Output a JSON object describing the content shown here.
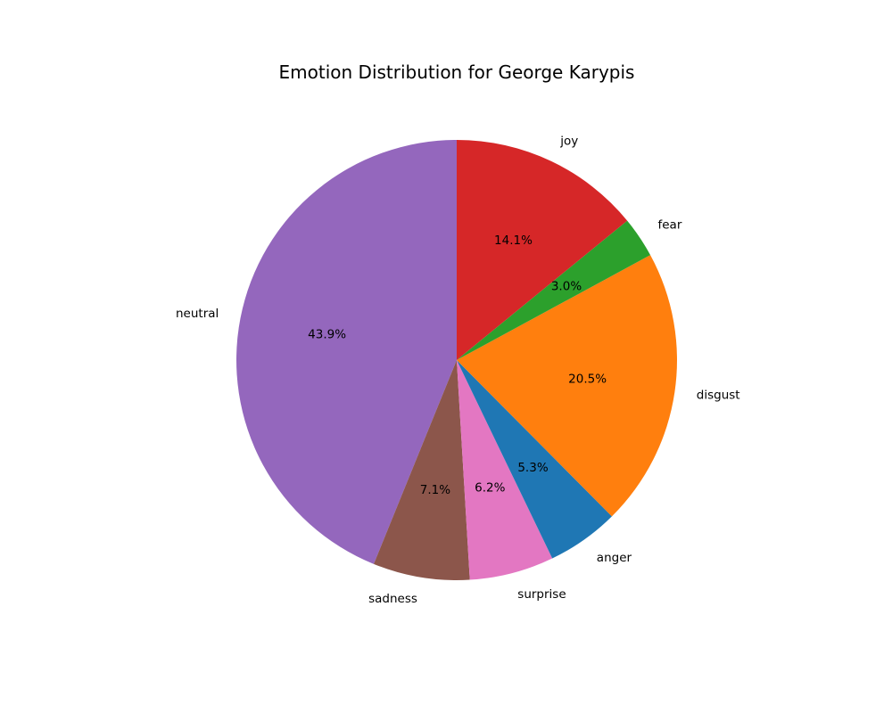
{
  "chart_data": {
    "type": "pie",
    "title": "Emotion Distribution for George Karypis",
    "start_angle_deg": 90,
    "direction": "counterclockwise",
    "slices": [
      {
        "name": "neutral",
        "value": 43.9,
        "label": "43.9%",
        "color": "#9467bd"
      },
      {
        "name": "sadness",
        "value": 7.1,
        "label": "7.1%",
        "color": "#8c564b"
      },
      {
        "name": "surprise",
        "value": 6.2,
        "label": "6.2%",
        "color": "#e377c2"
      },
      {
        "name": "anger",
        "value": 5.3,
        "label": "5.3%",
        "color": "#1f77b4"
      },
      {
        "name": "disgust",
        "value": 20.5,
        "label": "20.5%",
        "color": "#ff7f0e"
      },
      {
        "name": "fear",
        "value": 3.0,
        "label": "3.0%",
        "color": "#2ca02c"
      },
      {
        "name": "joy",
        "value": 14.1,
        "label": "14.1%",
        "color": "#d62728"
      }
    ]
  }
}
